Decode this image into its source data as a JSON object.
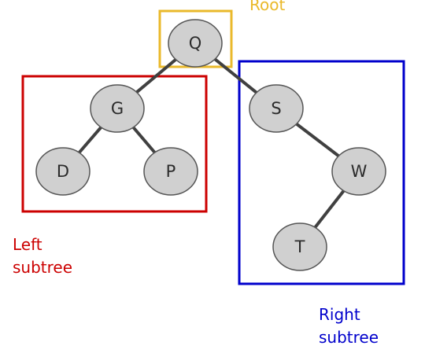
{
  "colors": {
    "root_box": "#eab92b",
    "left_box": "#cc0000",
    "right_box": "#0000cc",
    "node_fill": "#d0d0d0",
    "node_stroke": "#555555",
    "edge": "#404040"
  },
  "annotations": {
    "root": "Root",
    "left_subtree": "Left\nsubtree",
    "right_subtree": "Right\nsubtree"
  },
  "tree": {
    "nodes": [
      {
        "id": "Q",
        "label": "Q"
      },
      {
        "id": "G",
        "label": "G"
      },
      {
        "id": "S",
        "label": "S"
      },
      {
        "id": "D",
        "label": "D"
      },
      {
        "id": "P",
        "label": "P"
      },
      {
        "id": "W",
        "label": "W"
      },
      {
        "id": "T",
        "label": "T"
      }
    ],
    "edges": [
      {
        "from": "Q",
        "to": "G"
      },
      {
        "from": "Q",
        "to": "S"
      },
      {
        "from": "G",
        "to": "D"
      },
      {
        "from": "G",
        "to": "P"
      },
      {
        "from": "S",
        "to": "W"
      },
      {
        "from": "W",
        "to": "T"
      }
    ]
  }
}
